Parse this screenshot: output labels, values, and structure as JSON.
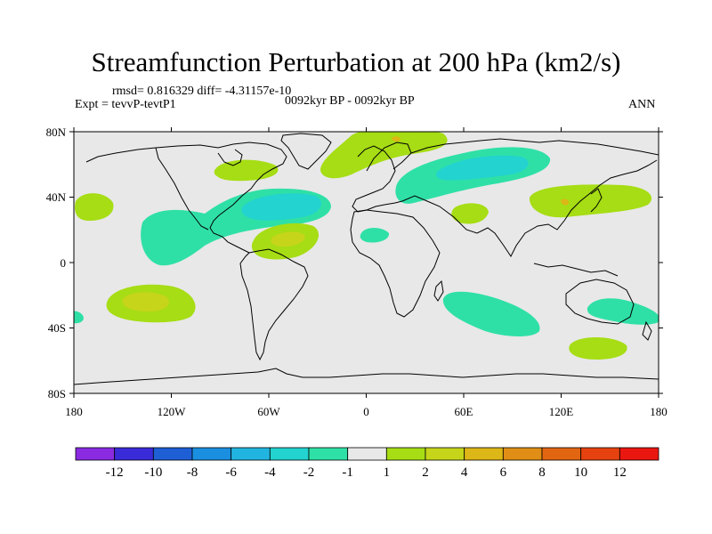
{
  "title": "Streamfunction Perturbation at 200 hPa (km2/s)",
  "stats": "rmsd= 0.816329 diff= -4.31157e-10",
  "experiment": "Expt = tevvP-tevtP1",
  "period": "0092kyr BP - 0092kyr BP",
  "season": "ANN",
  "axes": {
    "lat_ticks": [
      "80N",
      "40N",
      "0",
      "40S",
      "80S"
    ],
    "lon_ticks": [
      "180",
      "120W",
      "60W",
      "0",
      "60E",
      "120E",
      "180"
    ]
  },
  "colorbar": {
    "colors": [
      "#8a2be2",
      "#3a2bd8",
      "#1e5fd6",
      "#1a8fe0",
      "#22b4e0",
      "#22d3cf",
      "#2fe0a6",
      "#e8e8e8",
      "#a6dd14",
      "#c6d51a",
      "#ddb617",
      "#e08e15",
      "#e26612",
      "#e6420f",
      "#ea1710"
    ],
    "labels": [
      "-12",
      "-10",
      "-8",
      "-6",
      "-4",
      "-2",
      "-1",
      "1",
      "2",
      "4",
      "6",
      "8",
      "10",
      "12"
    ]
  },
  "colors": {
    "background": "#e8e8e8",
    "neg_minus1": "#2fe0a6",
    "neg_minus2": "#22d3cf",
    "pos_1": "#a6dd14",
    "pos_2": "#c6d51a",
    "pos_4": "#ddb617",
    "pos_6": "#e08e15",
    "coast": "#000000"
  }
}
